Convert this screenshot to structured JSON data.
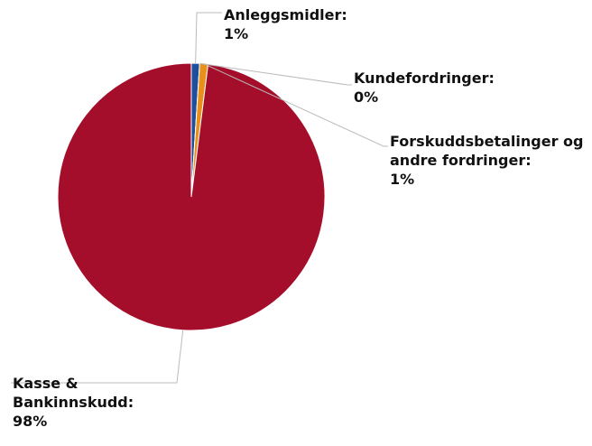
{
  "chart_data": {
    "type": "pie",
    "categories": [
      "Anleggsmidler:",
      "Kundefordringer:",
      "Forskuddsbetalinger og andre fordringer:",
      "Kasse & Bankinnskudd:"
    ],
    "values": [
      1,
      0,
      1,
      98
    ],
    "value_labels": [
      "1%",
      "0%",
      "1%",
      "98%"
    ],
    "colors": [
      "#1f4e9c",
      "#c9c9c9",
      "#e8901a",
      "#a50e2a"
    ]
  }
}
